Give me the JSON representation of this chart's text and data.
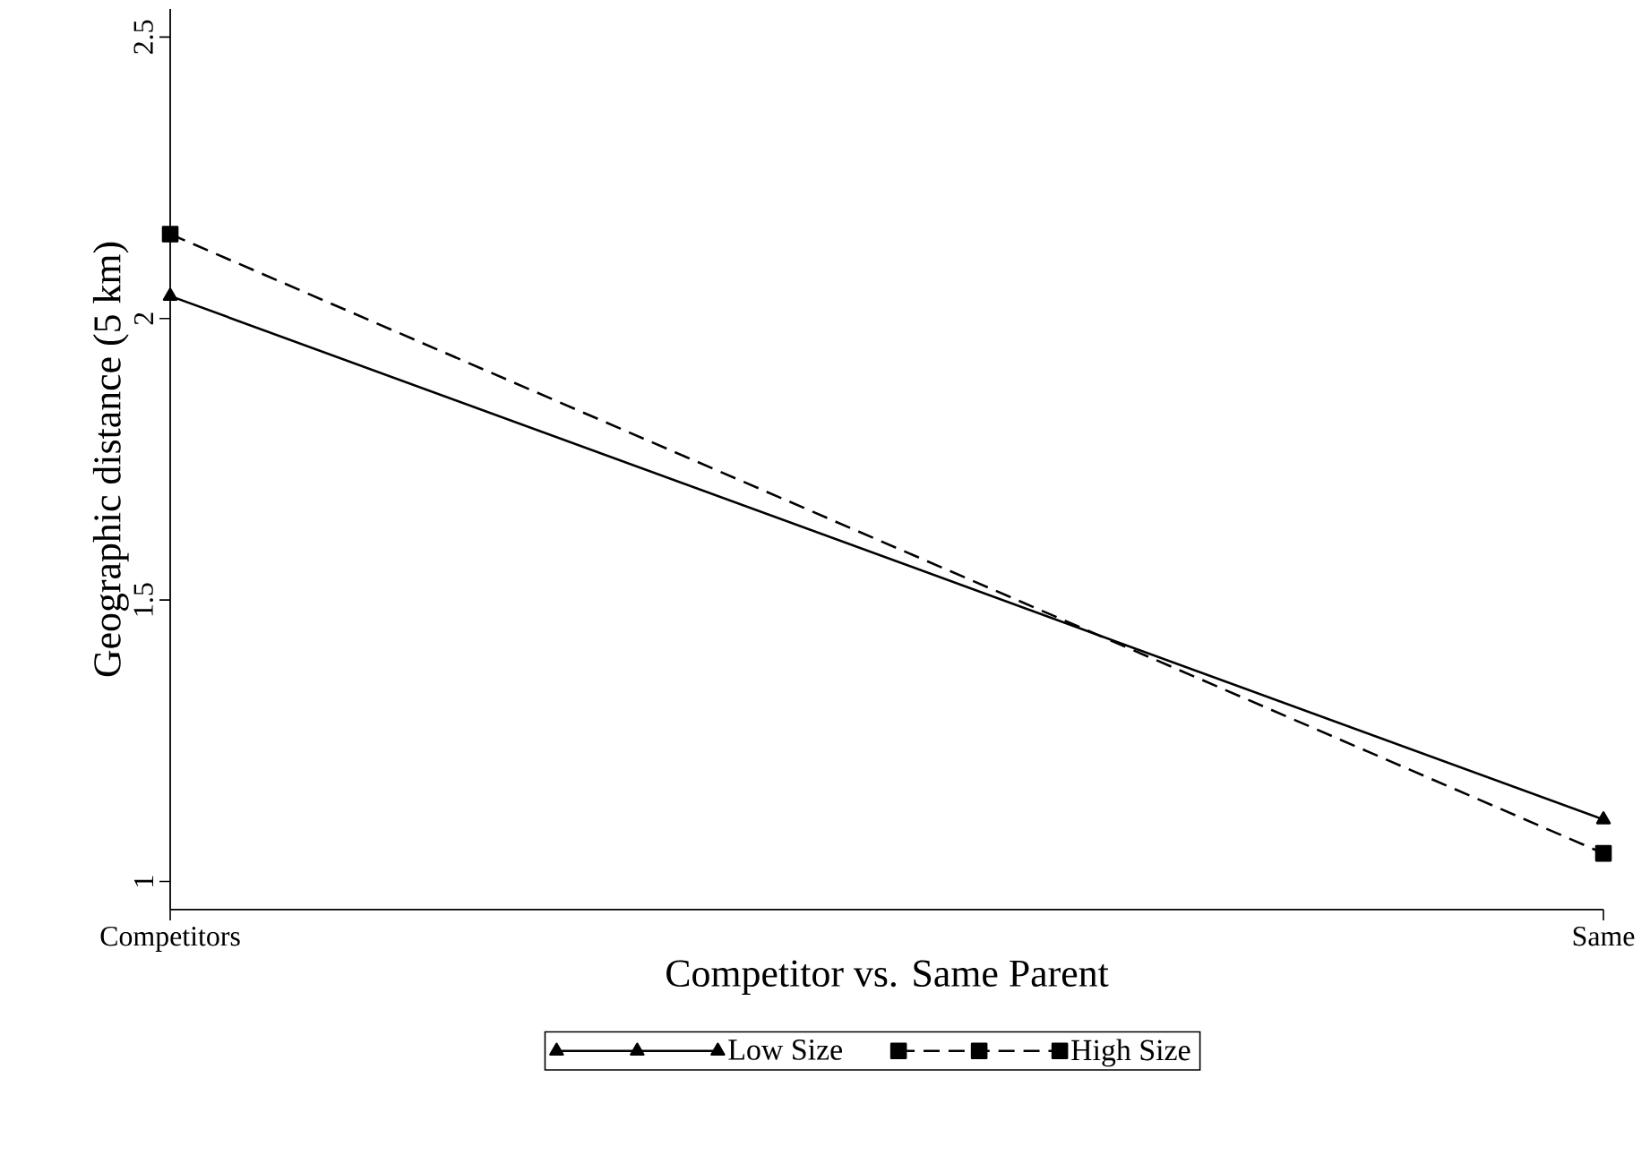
{
  "chart_data": {
    "type": "line",
    "xlabel": "Competitor vs. Same Parent",
    "ylabel": "Geographic distance (5 km)",
    "categories": [
      "Competitors",
      "Same"
    ],
    "series": [
      {
        "name": "Low Size",
        "color": "#000000",
        "values": [
          2.04,
          1.11
        ],
        "marker": "triangle",
        "line_style": "solid"
      },
      {
        "name": "High Size",
        "color": "#000000",
        "values": [
          2.15,
          1.05
        ],
        "marker": "square",
        "line_style": "dashed"
      }
    ],
    "ylim": [
      0.95,
      2.55
    ],
    "yticks": [
      1,
      1.5,
      2,
      2.5
    ],
    "grid": false,
    "legend": "bottom"
  }
}
